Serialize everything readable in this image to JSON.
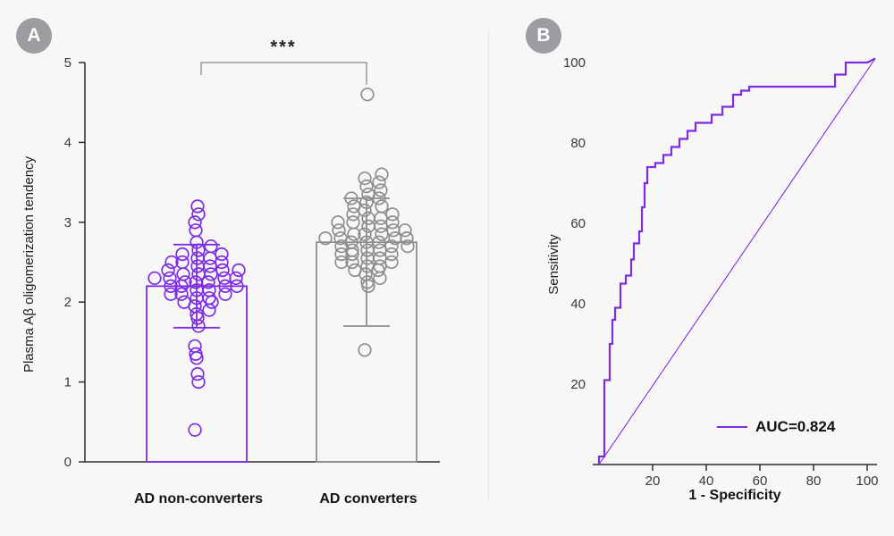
{
  "figure": {
    "background": "#f7f7f8",
    "accent_purple": "#7d2ce8",
    "group_gray": "#8e8e8e",
    "axis_color": "#2e2e2e"
  },
  "chart_data": [
    {
      "type": "scatter",
      "panel": "A",
      "title": "",
      "xlabel": "",
      "ylabel": "Plasma Aβ oligomerization tendency",
      "ylim": [
        0,
        5
      ],
      "yticks": [
        0,
        1,
        2,
        3,
        4,
        5
      ],
      "significance": "***",
      "grid": false,
      "groups": [
        {
          "label": "AD non-converters",
          "color": "#7d2ce8",
          "bar_mean": 2.2,
          "err_low": 1.68,
          "err_high": 2.72,
          "points": [
            0.4,
            1.0,
            1.1,
            1.3,
            1.35,
            1.45,
            1.7,
            1.8,
            1.85,
            1.9,
            1.95,
            2.0,
            2.0,
            2.05,
            2.05,
            2.1,
            2.1,
            2.1,
            2.15,
            2.15,
            2.2,
            2.2,
            2.2,
            2.2,
            2.25,
            2.25,
            2.25,
            2.3,
            2.3,
            2.3,
            2.3,
            2.35,
            2.35,
            2.35,
            2.4,
            2.4,
            2.4,
            2.45,
            2.45,
            2.5,
            2.5,
            2.5,
            2.55,
            2.55,
            2.6,
            2.6,
            2.65,
            2.7,
            2.75,
            2.9,
            3.0,
            3.1,
            3.2
          ]
        },
        {
          "label": "AD converters",
          "color": "#8e8e8e",
          "bar_mean": 2.75,
          "err_low": 1.7,
          "err_high": 3.3,
          "points": [
            1.4,
            2.2,
            2.25,
            2.3,
            2.35,
            2.4,
            2.4,
            2.45,
            2.45,
            2.5,
            2.5,
            2.5,
            2.55,
            2.55,
            2.6,
            2.6,
            2.6,
            2.65,
            2.65,
            2.65,
            2.7,
            2.7,
            2.7,
            2.75,
            2.75,
            2.75,
            2.8,
            2.8,
            2.8,
            2.8,
            2.85,
            2.85,
            2.85,
            2.9,
            2.9,
            2.9,
            2.95,
            2.95,
            3.0,
            3.0,
            3.0,
            3.05,
            3.05,
            3.1,
            3.1,
            3.15,
            3.2,
            3.2,
            3.25,
            3.3,
            3.3,
            3.35,
            3.4,
            3.45,
            3.5,
            3.55,
            3.6,
            4.6
          ]
        }
      ]
    },
    {
      "type": "line",
      "panel": "B",
      "title": "",
      "xlabel": "1 - Specificity",
      "ylabel": "Sensitivity",
      "xlim": [
        0,
        103
      ],
      "ylim": [
        0,
        102
      ],
      "xticks": [
        20,
        40,
        60,
        80,
        100
      ],
      "yticks": [
        20,
        40,
        60,
        80,
        100
      ],
      "grid": false,
      "legend": {
        "label": "AUC=0.824",
        "position": "lower-right",
        "color": "#7d2ce8"
      },
      "series": [
        {
          "name": "ROC curve",
          "color": "#7d2ce8",
          "width": 2.2,
          "points": [
            [
              0,
              0
            ],
            [
              0,
              2
            ],
            [
              2,
              2
            ],
            [
              2,
              21
            ],
            [
              4,
              21
            ],
            [
              4,
              30
            ],
            [
              5,
              30
            ],
            [
              5,
              36
            ],
            [
              6,
              36
            ],
            [
              6,
              39
            ],
            [
              8,
              39
            ],
            [
              8,
              45
            ],
            [
              10,
              45
            ],
            [
              10,
              47
            ],
            [
              12,
              47
            ],
            [
              12,
              51
            ],
            [
              13,
              51
            ],
            [
              13,
              55
            ],
            [
              15,
              55
            ],
            [
              15,
              58
            ],
            [
              16,
              58
            ],
            [
              16,
              64
            ],
            [
              17,
              64
            ],
            [
              17,
              70
            ],
            [
              18,
              70
            ],
            [
              18,
              74
            ],
            [
              21,
              74
            ],
            [
              21,
              75
            ],
            [
              24,
              75
            ],
            [
              24,
              77
            ],
            [
              27,
              77
            ],
            [
              27,
              79
            ],
            [
              30,
              79
            ],
            [
              30,
              81
            ],
            [
              33,
              81
            ],
            [
              33,
              83
            ],
            [
              36,
              83
            ],
            [
              36,
              85
            ],
            [
              42,
              85
            ],
            [
              42,
              87
            ],
            [
              46,
              87
            ],
            [
              46,
              89
            ],
            [
              50,
              89
            ],
            [
              50,
              92
            ],
            [
              53,
              92
            ],
            [
              53,
              93
            ],
            [
              56,
              93
            ],
            [
              56,
              94
            ],
            [
              88,
              94
            ],
            [
              88,
              97
            ],
            [
              92,
              97
            ],
            [
              92,
              100
            ],
            [
              100,
              100
            ],
            [
              103,
              101
            ]
          ]
        },
        {
          "name": "Reference diagonal",
          "color": "#7d2ce8",
          "width": 1.1,
          "points": [
            [
              0,
              0
            ],
            [
              103,
              101
            ]
          ]
        }
      ]
    }
  ]
}
